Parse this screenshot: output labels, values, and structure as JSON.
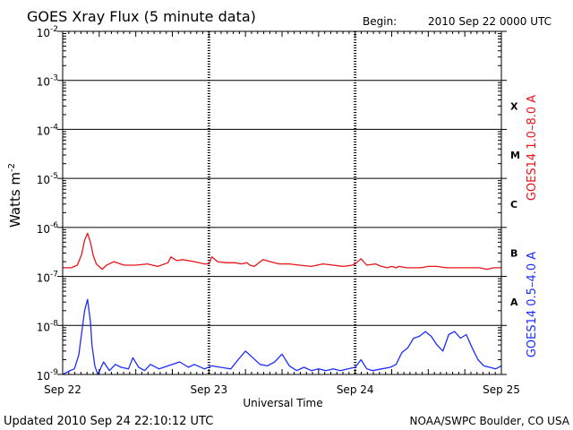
{
  "header": {
    "title": "GOES Xray Flux (5 minute data)",
    "begin_label": "Begin:",
    "begin_value": "2010 Sep 22 0000 UTC"
  },
  "footer": {
    "updated": "Updated 2010 Sep 24 22:10:12 UTC",
    "credit": "NOAA/SWPC Boulder, CO USA"
  },
  "colors": {
    "long_channel": "#e8141a",
    "short_channel": "#1a2cff",
    "frame": "#000000",
    "background": "#ffffff"
  },
  "chart_data": {
    "type": "line",
    "title": "GOES Xray Flux (5 minute data)",
    "xlabel": "Universal Time",
    "ylabel": "Watts m",
    "ylabel_sup": "-2",
    "y_scale": "log",
    "ylim": [
      1e-09,
      0.01
    ],
    "y_ticks": [
      {
        "mant": "10",
        "exp": "-9",
        "value": 1e-09
      },
      {
        "mant": "10",
        "exp": "-8",
        "value": 1e-08
      },
      {
        "mant": "10",
        "exp": "-7",
        "value": 1e-07
      },
      {
        "mant": "10",
        "exp": "-6",
        "value": 1e-06
      },
      {
        "mant": "10",
        "exp": "-5",
        "value": 1e-05
      },
      {
        "mant": "10",
        "exp": "-4",
        "value": 0.0001
      },
      {
        "mant": "10",
        "exp": "-3",
        "value": 0.001
      },
      {
        "mant": "10",
        "exp": "-2",
        "value": 0.01
      }
    ],
    "x_ticks": [
      "Sep 22",
      "Sep 23",
      "Sep 24",
      "Sep 25"
    ],
    "xlim_days": [
      0,
      3
    ],
    "flare_classes": [
      {
        "label": "A",
        "value": 3e-08
      },
      {
        "label": "B",
        "value": 3e-07
      },
      {
        "label": "C",
        "value": 3e-06
      },
      {
        "label": "M",
        "value": 3e-05
      },
      {
        "label": "X",
        "value": 0.0003
      }
    ],
    "grid": true,
    "series": [
      {
        "name": "GOES14 1.0–8.0 A",
        "color": "#e8141a",
        "points": [
          [
            0.0,
            1.5e-07
          ],
          [
            0.06,
            1.5e-07
          ],
          [
            0.1,
            1.7e-07
          ],
          [
            0.13,
            2.8e-07
          ],
          [
            0.15,
            5.5e-07
          ],
          [
            0.17,
            7.6e-07
          ],
          [
            0.19,
            5e-07
          ],
          [
            0.21,
            2.6e-07
          ],
          [
            0.23,
            1.8e-07
          ],
          [
            0.27,
            1.4e-07
          ],
          [
            0.3,
            1.7e-07
          ],
          [
            0.35,
            2e-07
          ],
          [
            0.42,
            1.7e-07
          ],
          [
            0.5,
            1.7e-07
          ],
          [
            0.58,
            1.8e-07
          ],
          [
            0.65,
            1.6e-07
          ],
          [
            0.72,
            1.9e-07
          ],
          [
            0.74,
            2.5e-07
          ],
          [
            0.78,
            2.1e-07
          ],
          [
            0.82,
            2.2e-07
          ],
          [
            0.9,
            2e-07
          ],
          [
            0.97,
            1.8e-07
          ],
          [
            1.0,
            1.8e-07
          ],
          [
            1.02,
            2.5e-07
          ],
          [
            1.06,
            2e-07
          ],
          [
            1.12,
            1.9e-07
          ],
          [
            1.18,
            1.9e-07
          ],
          [
            1.22,
            1.8e-07
          ],
          [
            1.26,
            1.9e-07
          ],
          [
            1.28,
            1.7e-07
          ],
          [
            1.31,
            1.6e-07
          ],
          [
            1.37,
            2.2e-07
          ],
          [
            1.42,
            2e-07
          ],
          [
            1.48,
            1.8e-07
          ],
          [
            1.55,
            1.8e-07
          ],
          [
            1.62,
            1.7e-07
          ],
          [
            1.7,
            1.6e-07
          ],
          [
            1.78,
            1.8e-07
          ],
          [
            1.85,
            1.7e-07
          ],
          [
            1.92,
            1.6e-07
          ],
          [
            1.98,
            1.7e-07
          ],
          [
            2.0,
            1.8e-07
          ],
          [
            2.04,
            2.3e-07
          ],
          [
            2.08,
            1.7e-07
          ],
          [
            2.14,
            1.8e-07
          ],
          [
            2.18,
            1.6e-07
          ],
          [
            2.22,
            1.5e-07
          ],
          [
            2.25,
            1.6e-07
          ],
          [
            2.28,
            1.5e-07
          ],
          [
            2.3,
            1.6e-07
          ],
          [
            2.35,
            1.5e-07
          ],
          [
            2.4,
            1.5e-07
          ],
          [
            2.45,
            1.5e-07
          ],
          [
            2.5,
            1.6e-07
          ],
          [
            2.56,
            1.6e-07
          ],
          [
            2.62,
            1.5e-07
          ],
          [
            2.68,
            1.5e-07
          ],
          [
            2.74,
            1.5e-07
          ],
          [
            2.8,
            1.5e-07
          ],
          [
            2.85,
            1.5e-07
          ],
          [
            2.9,
            1.4e-07
          ],
          [
            2.95,
            1.5e-07
          ],
          [
            3.0,
            1.5e-07
          ]
        ]
      },
      {
        "name": "GOES14 0.5–4.0 A",
        "color": "#1a2cff",
        "points": [
          [
            0.0,
            1e-09
          ],
          [
            0.05,
            1.2e-09
          ],
          [
            0.08,
            1.3e-09
          ],
          [
            0.11,
            2.5e-09
          ],
          [
            0.13,
            7e-09
          ],
          [
            0.15,
            2e-08
          ],
          [
            0.17,
            3.4e-08
          ],
          [
            0.19,
            1.2e-08
          ],
          [
            0.2,
            4e-09
          ],
          [
            0.22,
            1.5e-09
          ],
          [
            0.24,
            1e-09
          ],
          [
            0.28,
            1.8e-09
          ],
          [
            0.32,
            1.2e-09
          ],
          [
            0.36,
            1.6e-09
          ],
          [
            0.4,
            1.4e-09
          ],
          [
            0.45,
            1.3e-09
          ],
          [
            0.48,
            2.2e-09
          ],
          [
            0.52,
            1.4e-09
          ],
          [
            0.56,
            1.2e-09
          ],
          [
            0.6,
            1.6e-09
          ],
          [
            0.66,
            1.3e-09
          ],
          [
            0.72,
            1.5e-09
          ],
          [
            0.8,
            1.8e-09
          ],
          [
            0.86,
            1.4e-09
          ],
          [
            0.9,
            1.6e-09
          ],
          [
            0.97,
            1.3e-09
          ],
          [
            1.02,
            1.5e-09
          ],
          [
            1.08,
            1.4e-09
          ],
          [
            1.15,
            1.3e-09
          ],
          [
            1.2,
            2e-09
          ],
          [
            1.25,
            3e-09
          ],
          [
            1.3,
            2.2e-09
          ],
          [
            1.35,
            1.6e-09
          ],
          [
            1.4,
            1.5e-09
          ],
          [
            1.45,
            1.8e-09
          ],
          [
            1.5,
            2.6e-09
          ],
          [
            1.55,
            1.5e-09
          ],
          [
            1.6,
            1.2e-09
          ],
          [
            1.65,
            1.4e-09
          ],
          [
            1.7,
            1.2e-09
          ],
          [
            1.75,
            1.3e-09
          ],
          [
            1.8,
            1.2e-09
          ],
          [
            1.85,
            1.3e-09
          ],
          [
            1.9,
            1.2e-09
          ],
          [
            1.95,
            1.3e-09
          ],
          [
            2.0,
            1.4e-09
          ],
          [
            2.04,
            2e-09
          ],
          [
            2.08,
            1.3e-09
          ],
          [
            2.12,
            1.2e-09
          ],
          [
            2.18,
            1.3e-09
          ],
          [
            2.24,
            1.4e-09
          ],
          [
            2.28,
            1.6e-09
          ],
          [
            2.32,
            2.8e-09
          ],
          [
            2.36,
            3.5e-09
          ],
          [
            2.4,
            5.5e-09
          ],
          [
            2.44,
            6e-09
          ],
          [
            2.48,
            7.5e-09
          ],
          [
            2.52,
            6e-09
          ],
          [
            2.56,
            4e-09
          ],
          [
            2.6,
            3e-09
          ],
          [
            2.64,
            6.5e-09
          ],
          [
            2.68,
            7.5e-09
          ],
          [
            2.72,
            5.5e-09
          ],
          [
            2.76,
            6.5e-09
          ],
          [
            2.8,
            3.5e-09
          ],
          [
            2.84,
            2e-09
          ],
          [
            2.88,
            1.5e-09
          ],
          [
            2.92,
            1.4e-09
          ],
          [
            2.96,
            1.3e-09
          ],
          [
            3.0,
            1.5e-09
          ]
        ]
      }
    ]
  }
}
